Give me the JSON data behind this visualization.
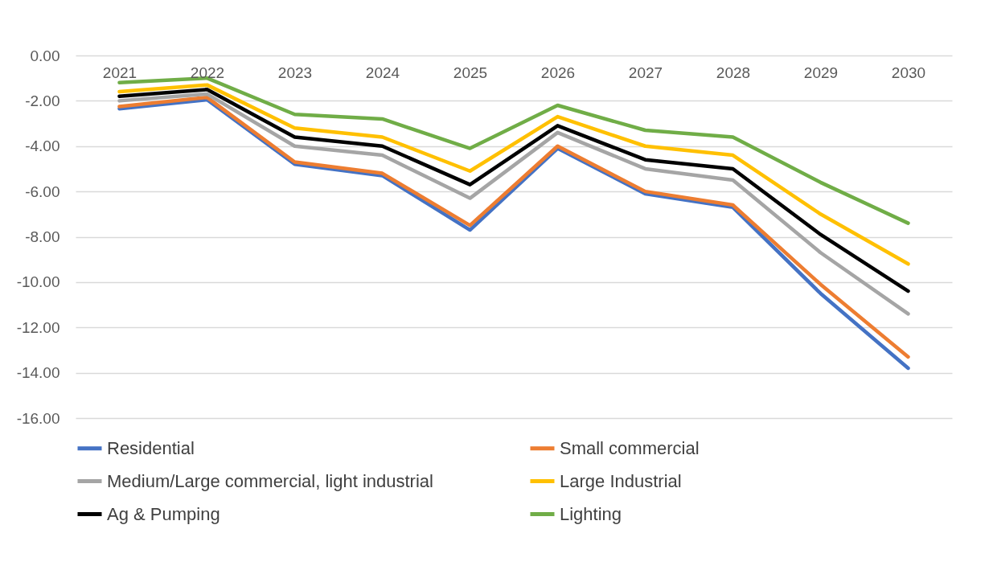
{
  "chart_data": {
    "type": "line",
    "categories": [
      "2021",
      "2022",
      "2023",
      "2024",
      "2025",
      "2026",
      "2027",
      "2028",
      "2029",
      "2030"
    ],
    "series": [
      {
        "name": "Residential",
        "color": "#4472c4",
        "values": [
          -2.35,
          -1.95,
          -4.8,
          -5.3,
          -7.7,
          -4.1,
          -6.1,
          -6.7,
          -10.5,
          -13.8
        ]
      },
      {
        "name": "Small commercial",
        "color": "#ed7d31",
        "values": [
          -2.25,
          -1.85,
          -4.7,
          -5.2,
          -7.5,
          -4.0,
          -6.0,
          -6.6,
          -10.1,
          -13.3
        ]
      },
      {
        "name": "Medium/Large commercial, light industrial",
        "color": "#a5a5a5",
        "values": [
          -2.0,
          -1.7,
          -4.0,
          -4.4,
          -6.3,
          -3.4,
          -5.0,
          -5.5,
          -8.7,
          -11.4
        ]
      },
      {
        "name": "Large Industrial",
        "color": "#ffc000",
        "values": [
          -1.6,
          -1.3,
          -3.2,
          -3.6,
          -5.1,
          -2.7,
          -4.0,
          -4.4,
          -7.0,
          -9.2
        ]
      },
      {
        "name": "Ag & Pumping",
        "color": "#000000",
        "values": [
          -1.8,
          -1.5,
          -3.6,
          -4.0,
          -5.7,
          -3.1,
          -4.6,
          -5.0,
          -7.9,
          -10.4
        ]
      },
      {
        "name": "Lighting",
        "color": "#70ad47",
        "values": [
          -1.2,
          -1.0,
          -2.6,
          -2.8,
          -4.1,
          -2.2,
          -3.3,
          -3.6,
          -5.6,
          -7.4
        ]
      }
    ],
    "ylim": [
      -16,
      0
    ],
    "yticks": [
      {
        "value": 0,
        "label": "0.00"
      },
      {
        "value": -2,
        "label": "-2.00"
      },
      {
        "value": -4,
        "label": "-4.00"
      },
      {
        "value": -6,
        "label": "-6.00"
      },
      {
        "value": -8,
        "label": "-8.00"
      },
      {
        "value": -10,
        "label": "-10.00"
      },
      {
        "value": -12,
        "label": "-12.00"
      },
      {
        "value": -14,
        "label": "-14.00"
      },
      {
        "value": -16,
        "label": "-16.00"
      }
    ],
    "grid": "y",
    "legend": "bottom",
    "line_style": "solid"
  }
}
